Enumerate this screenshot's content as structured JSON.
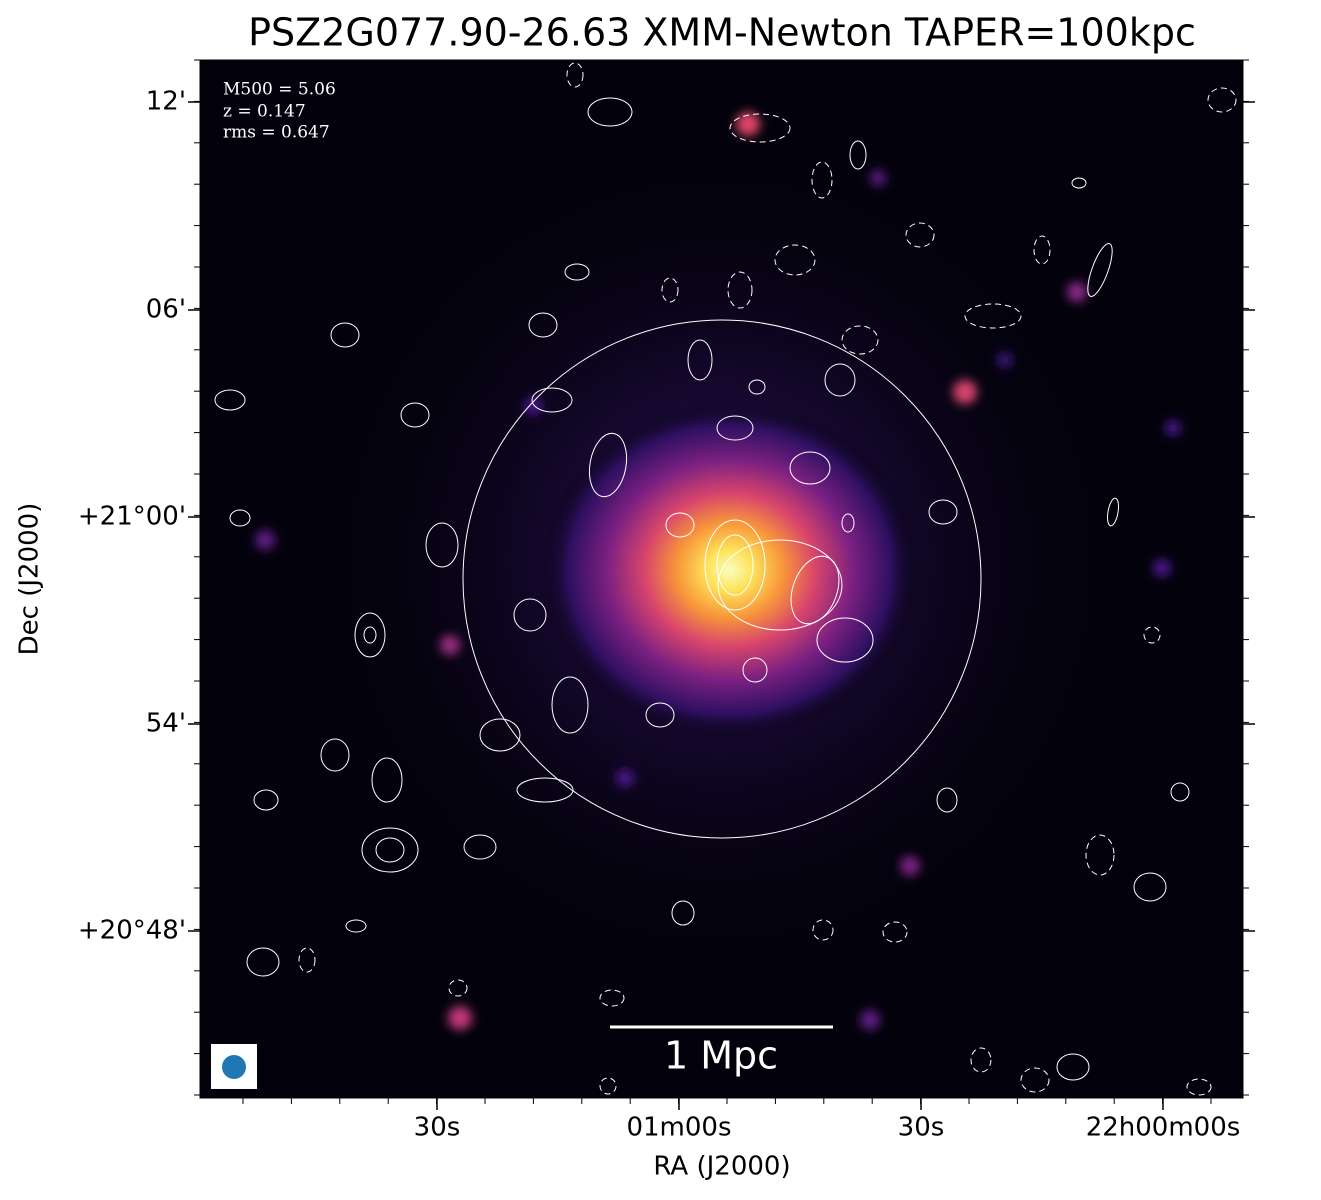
{
  "title": "PSZ2G077.90-26.63 XMM-Newton TAPER=100kpc",
  "info": [
    "M500 = 5.06",
    "z = 0.147",
    "rms = 0.647"
  ],
  "scale_bar": "1 Mpc",
  "x_axis": {
    "label": "RA (J2000)",
    "ticks": [
      "30s",
      "01m00s",
      "30s",
      "22h00m00s"
    ]
  },
  "y_axis": {
    "label": "Dec (J2000)",
    "ticks": [
      "12'",
      "06'",
      "+21°00'",
      "54'",
      "+20°48'"
    ]
  }
}
